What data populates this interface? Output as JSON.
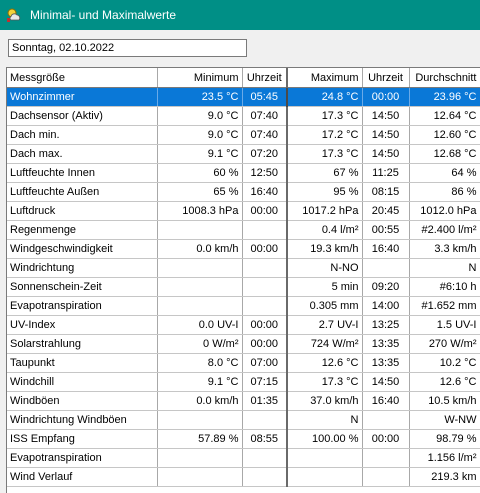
{
  "window": {
    "title": "Minimal- und Maximalwerte",
    "icon": "weather-app-icon"
  },
  "date_field": {
    "value": "Sonntag, 02.10.2022"
  },
  "table": {
    "headers": {
      "name": "Messgröße",
      "min": "Minimum",
      "min_time": "Uhrzeit",
      "max": "Maximum",
      "max_time": "Uhrzeit",
      "avg": "Durchschnitt"
    },
    "selected_row": 0,
    "rows": [
      {
        "name": "Wohnzimmer",
        "min": "23.5 °C",
        "min_time": "05:45",
        "max": "24.8 °C",
        "max_time": "00:00",
        "avg": "23.96 °C"
      },
      {
        "name": "Dachsensor (Aktiv)",
        "min": "9.0 °C",
        "min_time": "07:40",
        "max": "17.3 °C",
        "max_time": "14:50",
        "avg": "12.64 °C"
      },
      {
        "name": "Dach min.",
        "min": "9.0 °C",
        "min_time": "07:40",
        "max": "17.2 °C",
        "max_time": "14:50",
        "avg": "12.60 °C"
      },
      {
        "name": "Dach max.",
        "min": "9.1 °C",
        "min_time": "07:20",
        "max": "17.3 °C",
        "max_time": "14:50",
        "avg": "12.68 °C"
      },
      {
        "name": "Luftfeuchte Innen",
        "min": "60 %",
        "min_time": "12:50",
        "max": "67 %",
        "max_time": "11:25",
        "avg": "64 %"
      },
      {
        "name": "Luftfeuchte Außen",
        "min": "65 %",
        "min_time": "16:40",
        "max": "95 %",
        "max_time": "08:15",
        "avg": "86 %"
      },
      {
        "name": "Luftdruck",
        "min": "1008.3 hPa",
        "min_time": "00:00",
        "max": "1017.2 hPa",
        "max_time": "20:45",
        "avg": "1012.0 hPa"
      },
      {
        "name": "Regenmenge",
        "min": "",
        "min_time": "",
        "max": "0.4 l/m²",
        "max_time": "00:55",
        "avg": "#2.400 l/m²"
      },
      {
        "name": "Windgeschwindigkeit",
        "min": "0.0 km/h",
        "min_time": "00:00",
        "max": "19.3 km/h",
        "max_time": "16:40",
        "avg": "3.3 km/h"
      },
      {
        "name": "Windrichtung",
        "min": "",
        "min_time": "",
        "max": "N-NO",
        "max_time": "",
        "avg": "N"
      },
      {
        "name": "Sonnenschein-Zeit",
        "min": "",
        "min_time": "",
        "max": "5 min",
        "max_time": "09:20",
        "avg": "#6:10 h"
      },
      {
        "name": "Evapotranspiration",
        "min": "",
        "min_time": "",
        "max": "0.305 mm",
        "max_time": "14:00",
        "avg": "#1.652 mm"
      },
      {
        "name": "UV-Index",
        "min": "0.0 UV-I",
        "min_time": "00:00",
        "max": "2.7 UV-I",
        "max_time": "13:25",
        "avg": "1.5 UV-I"
      },
      {
        "name": "Solarstrahlung",
        "min": "0 W/m²",
        "min_time": "00:00",
        "max": "724 W/m²",
        "max_time": "13:35",
        "avg": "270 W/m²"
      },
      {
        "name": "Taupunkt",
        "min": "8.0 °C",
        "min_time": "07:00",
        "max": "12.6 °C",
        "max_time": "13:35",
        "avg": "10.2 °C"
      },
      {
        "name": "Windchill",
        "min": "9.1 °C",
        "min_time": "07:15",
        "max": "17.3 °C",
        "max_time": "14:50",
        "avg": "12.6 °C"
      },
      {
        "name": "Windböen",
        "min": "0.0 km/h",
        "min_time": "01:35",
        "max": "37.0 km/h",
        "max_time": "16:40",
        "avg": "10.5 km/h"
      },
      {
        "name": "Windrichtung Windböen",
        "min": "",
        "min_time": "",
        "max": "N",
        "max_time": "",
        "avg": "W-NW"
      },
      {
        "name": "ISS Empfang",
        "min": "57.89 %",
        "min_time": "08:55",
        "max": "100.00 %",
        "max_time": "00:00",
        "avg": "98.79 %"
      },
      {
        "name": "Evapotranspiration",
        "min": "",
        "min_time": "",
        "max": "",
        "max_time": "",
        "avg": "1.156 l/m²"
      },
      {
        "name": "Wind Verlauf",
        "min": "",
        "min_time": "",
        "max": "",
        "max_time": "",
        "avg": "219.3 km"
      }
    ]
  },
  "colors": {
    "titlebar": "#008f86",
    "selection": "#0a78d7"
  }
}
